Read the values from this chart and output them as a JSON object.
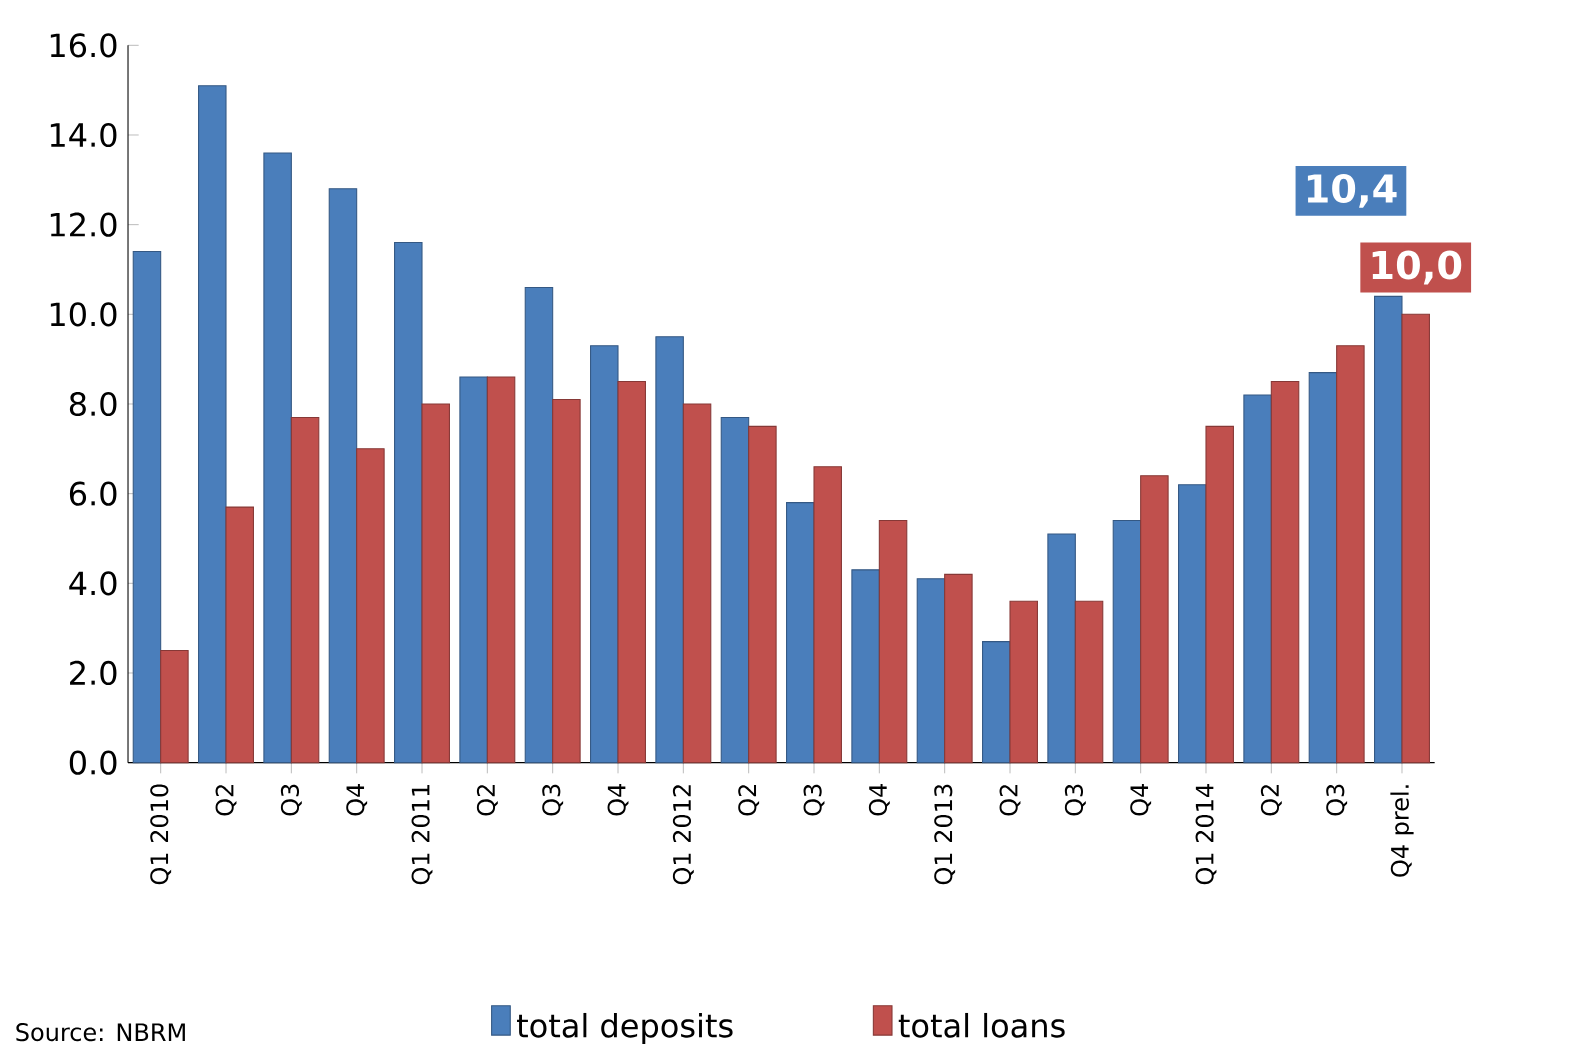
{
  "chart_data": {
    "type": "bar",
    "categories": [
      "Q1 2010",
      "Q2",
      "Q3",
      "Q4",
      "Q1 2011",
      "Q2",
      "Q3",
      "Q4",
      "Q1 2012",
      "Q2",
      "Q3",
      "Q4",
      "Q1 2013",
      "Q2",
      "Q3",
      "Q4",
      "Q1 2014",
      "Q2",
      "Q3",
      "Q4 prel."
    ],
    "series": [
      {
        "name": "total deposits",
        "color": "#4a7ebb",
        "values": [
          11.4,
          15.1,
          13.6,
          12.8,
          11.6,
          8.6,
          10.6,
          9.3,
          9.5,
          7.7,
          5.8,
          4.3,
          4.1,
          2.7,
          5.1,
          5.4,
          6.2,
          8.2,
          8.7,
          10.4
        ],
        "value_labels": [
          null,
          null,
          null,
          null,
          null,
          null,
          null,
          null,
          null,
          null,
          null,
          null,
          null,
          null,
          null,
          null,
          null,
          null,
          null,
          "10,4"
        ]
      },
      {
        "name": "total loans",
        "color": "#c0504d",
        "values": [
          2.5,
          5.7,
          7.7,
          7.0,
          8.0,
          8.6,
          8.1,
          8.5,
          8.0,
          7.5,
          6.6,
          5.4,
          4.2,
          3.6,
          3.6,
          6.4,
          7.5,
          8.5,
          9.3,
          10.0
        ],
        "value_labels": [
          null,
          null,
          null,
          null,
          null,
          null,
          null,
          null,
          null,
          null,
          null,
          null,
          null,
          null,
          null,
          null,
          null,
          null,
          null,
          "10,0"
        ]
      }
    ],
    "ylim": [
      0,
      16
    ],
    "yticks": [
      {
        "value": 0,
        "label": "0.0"
      },
      {
        "value": 2,
        "label": "2.0"
      },
      {
        "value": 4,
        "label": "4.0"
      },
      {
        "value": 6,
        "label": "6.0"
      },
      {
        "value": 8,
        "label": "8.0"
      },
      {
        "value": 10,
        "label": "10.0"
      },
      {
        "value": 12,
        "label": "12.0"
      },
      {
        "value": 14,
        "label": "14.0"
      },
      {
        "value": 16,
        "label": "16.0"
      }
    ],
    "legend": "bottom",
    "grid": false,
    "annotations": [
      "Source: NBRM"
    ]
  }
}
